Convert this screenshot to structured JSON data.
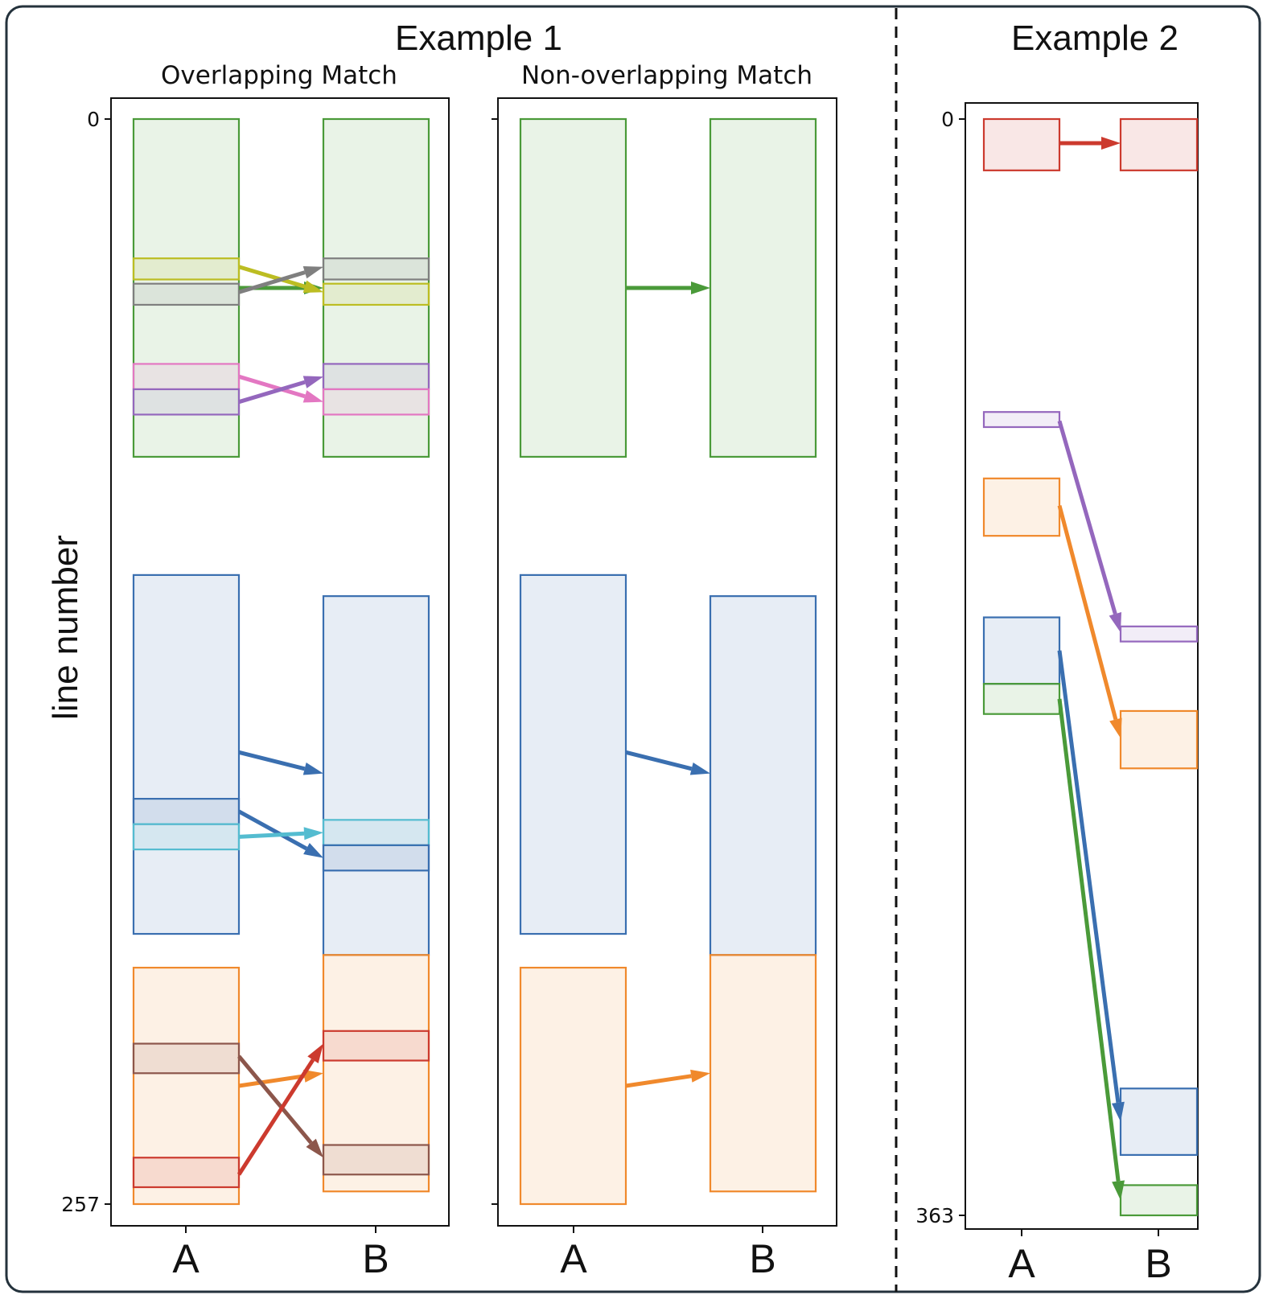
{
  "titles": {
    "example1": "Example 1",
    "example2": "Example 2",
    "overlapping": "Overlapping Match",
    "nonoverlapping": "Non-overlapping Match"
  },
  "ylabel": "line number",
  "colors": {
    "green": "#4a9a39",
    "olive": "#bcbd22",
    "gray": "#7f7f7f",
    "pink": "#e377c2",
    "purple": "#9467bd",
    "blue": "#3a6fb0",
    "cyan": "#54bcd0",
    "orange": "#f0892c",
    "brown": "#8c564b",
    "red": "#cc3a2e"
  },
  "chart_data": [
    {
      "type": "diagram",
      "name": "overlapping",
      "y_axis": {
        "ticks": [
          "0",
          "257"
        ],
        "range": [
          0,
          257
        ]
      },
      "x_categories": [
        "A",
        "B"
      ],
      "blocks": [
        {
          "col": "A",
          "start": 0,
          "end": 80,
          "color": "green"
        },
        {
          "col": "A",
          "start": 33,
          "end": 38,
          "color": "olive"
        },
        {
          "col": "A",
          "start": 39,
          "end": 44,
          "color": "gray"
        },
        {
          "col": "A",
          "start": 58,
          "end": 64,
          "color": "pink"
        },
        {
          "col": "A",
          "start": 64,
          "end": 70,
          "color": "purple"
        },
        {
          "col": "A",
          "start": 108,
          "end": 193,
          "color": "blue"
        },
        {
          "col": "A",
          "start": 161,
          "end": 167,
          "color": "blue"
        },
        {
          "col": "A",
          "start": 167,
          "end": 173,
          "color": "cyan"
        },
        {
          "col": "A",
          "start": 201,
          "end": 257,
          "color": "orange"
        },
        {
          "col": "A",
          "start": 219,
          "end": 226,
          "color": "brown"
        },
        {
          "col": "A",
          "start": 246,
          "end": 253,
          "color": "red"
        },
        {
          "col": "B",
          "start": 0,
          "end": 80,
          "color": "green"
        },
        {
          "col": "B",
          "start": 33,
          "end": 38,
          "color": "gray"
        },
        {
          "col": "B",
          "start": 39,
          "end": 44,
          "color": "olive"
        },
        {
          "col": "B",
          "start": 58,
          "end": 64,
          "color": "purple"
        },
        {
          "col": "B",
          "start": 64,
          "end": 70,
          "color": "pink"
        },
        {
          "col": "B",
          "start": 113,
          "end": 198,
          "color": "blue"
        },
        {
          "col": "B",
          "start": 166,
          "end": 172,
          "color": "cyan"
        },
        {
          "col": "B",
          "start": 172,
          "end": 178,
          "color": "blue"
        },
        {
          "col": "B",
          "start": 198,
          "end": 254,
          "color": "orange"
        },
        {
          "col": "B",
          "start": 216,
          "end": 223,
          "color": "red"
        },
        {
          "col": "B",
          "start": 243,
          "end": 250,
          "color": "brown"
        }
      ],
      "arrows": [
        {
          "from": 40,
          "to": 40,
          "color": "green"
        },
        {
          "from": 35,
          "to": 41,
          "color": "olive"
        },
        {
          "from": 41,
          "to": 35,
          "color": "gray"
        },
        {
          "from": 61,
          "to": 67,
          "color": "pink"
        },
        {
          "from": 67,
          "to": 61,
          "color": "purple"
        },
        {
          "from": 150,
          "to": 155,
          "color": "blue"
        },
        {
          "from": 164,
          "to": 175,
          "color": "blue"
        },
        {
          "from": 170,
          "to": 169,
          "color": "cyan"
        },
        {
          "from": 229,
          "to": 226,
          "color": "orange"
        },
        {
          "from": 222,
          "to": 246,
          "color": "brown"
        },
        {
          "from": 250,
          "to": 219,
          "color": "red"
        }
      ]
    },
    {
      "type": "diagram",
      "name": "nonoverlapping",
      "y_axis": {
        "ticks": [],
        "range": [
          0,
          257
        ]
      },
      "x_categories": [
        "A",
        "B"
      ],
      "blocks": [
        {
          "col": "A",
          "start": 0,
          "end": 80,
          "color": "green"
        },
        {
          "col": "A",
          "start": 108,
          "end": 193,
          "color": "blue"
        },
        {
          "col": "A",
          "start": 201,
          "end": 257,
          "color": "orange"
        },
        {
          "col": "B",
          "start": 0,
          "end": 80,
          "color": "green"
        },
        {
          "col": "B",
          "start": 113,
          "end": 198,
          "color": "blue"
        },
        {
          "col": "B",
          "start": 198,
          "end": 254,
          "color": "orange"
        }
      ],
      "arrows": [
        {
          "from": 40,
          "to": 40,
          "color": "green"
        },
        {
          "from": 150,
          "to": 155,
          "color": "blue"
        },
        {
          "from": 229,
          "to": 226,
          "color": "orange"
        }
      ]
    },
    {
      "type": "diagram",
      "name": "example2",
      "y_axis": {
        "ticks": [
          "0",
          "363"
        ],
        "range": [
          0,
          363
        ]
      },
      "x_categories": [
        "A",
        "B"
      ],
      "blocks": [
        {
          "col": "A",
          "start": 0,
          "end": 17,
          "color": "red"
        },
        {
          "col": "A",
          "start": 97,
          "end": 102,
          "color": "purple"
        },
        {
          "col": "A",
          "start": 119,
          "end": 138,
          "color": "orange"
        },
        {
          "col": "A",
          "start": 165,
          "end": 187,
          "color": "blue"
        },
        {
          "col": "A",
          "start": 187,
          "end": 197,
          "color": "green"
        },
        {
          "col": "B",
          "start": 0,
          "end": 17,
          "color": "red"
        },
        {
          "col": "B",
          "start": 168,
          "end": 173,
          "color": "purple"
        },
        {
          "col": "B",
          "start": 196,
          "end": 215,
          "color": "orange"
        },
        {
          "col": "B",
          "start": 321,
          "end": 343,
          "color": "blue"
        },
        {
          "col": "B",
          "start": 353,
          "end": 363,
          "color": "green"
        }
      ],
      "arrows": [
        {
          "from": 8,
          "to": 8,
          "color": "red"
        },
        {
          "from": 100,
          "to": 170,
          "color": "purple"
        },
        {
          "from": 128,
          "to": 205,
          "color": "orange"
        },
        {
          "from": 176,
          "to": 332,
          "color": "blue"
        },
        {
          "from": 192,
          "to": 358,
          "color": "green"
        }
      ]
    }
  ]
}
